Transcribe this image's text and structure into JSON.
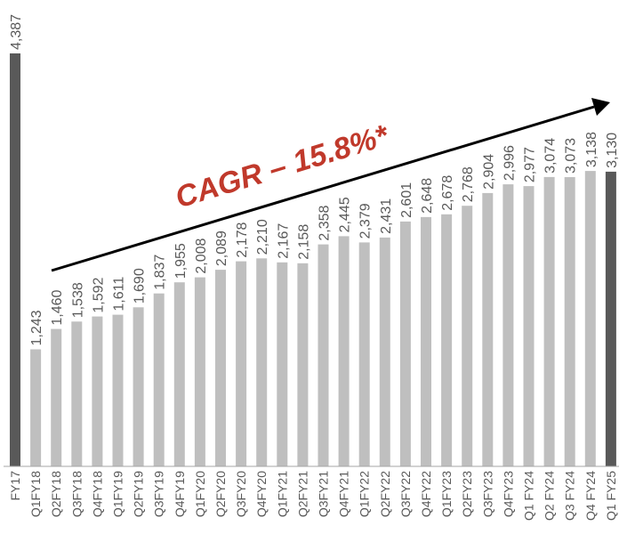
{
  "chart_data": {
    "type": "bar",
    "categories": [
      "FY17",
      "Q1FY18",
      "Q2FY18",
      "Q3FY18",
      "Q4FY18",
      "Q1FY19",
      "Q2FY19",
      "Q3FY19",
      "Q4FY19",
      "Q1FY20",
      "Q2FY20",
      "Q3FY20",
      "Q4FY20",
      "Q1FY21",
      "Q2FY21",
      "Q3FY21",
      "Q4FY21",
      "Q1FY22",
      "Q2FY22",
      "Q3FY22",
      "Q4FY22",
      "Q1FY23",
      "Q2FY23",
      "Q3FY23",
      "Q4FY23",
      "Q1 FY24",
      "Q2 FY24",
      "Q3 FY24",
      "Q4 FY24",
      "Q1 FY25"
    ],
    "values": [
      4387,
      1243,
      1460,
      1538,
      1592,
      1611,
      1690,
      1837,
      1955,
      2008,
      2089,
      2178,
      2210,
      2167,
      2158,
      2358,
      2445,
      2379,
      2431,
      2601,
      2648,
      2678,
      2768,
      2904,
      2996,
      2977,
      3074,
      3073,
      3138,
      3130
    ],
    "value_labels": [
      "4,387",
      "1,243",
      "1,460",
      "1,538",
      "1,592",
      "1,611",
      "1,690",
      "1,837",
      "1,955",
      "2,008",
      "2,089",
      "2,178",
      "2,210",
      "2,167",
      "2,158",
      "2,358",
      "2,445",
      "2,379",
      "2,431",
      "2,601",
      "2,648",
      "2,678",
      "2,768",
      "2,904",
      "2,996",
      "2,977",
      "3,074",
      "3,073",
      "3,138",
      "3,130"
    ],
    "highlighted_categories": [
      "FY17",
      "Q1 FY25"
    ],
    "annotation": "CAGR – 15.8%*",
    "ylim": [
      0,
      4387
    ],
    "grid": false,
    "legend": "none",
    "colors": {
      "highlight": "#595959",
      "quarter": "#bfbfbf",
      "label": "#595959",
      "annotation": "#c0392b",
      "arrow": "#000000",
      "axis": "#a6a6a6"
    }
  }
}
